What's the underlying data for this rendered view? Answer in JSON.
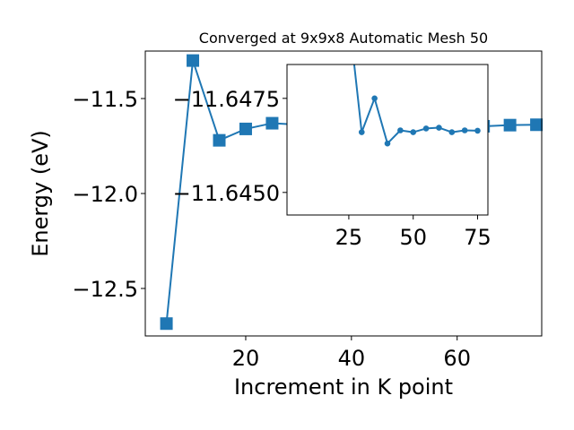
{
  "chart_data": [
    {
      "type": "line",
      "title": "Converged at 9x9x8 Automatic Mesh 50",
      "xlabel": "Increment in K point",
      "ylabel": "Energy (eV)",
      "xlim": [
        1,
        76
      ],
      "ylim": [
        -12.75,
        -11.25
      ],
      "xticks": [
        20,
        40,
        60
      ],
      "xtick_labels": [
        "20",
        "40",
        "60"
      ],
      "yticks": [
        -11.5,
        -12.0,
        -12.5
      ],
      "ytick_labels": [
        "−11.5",
        "−12.0",
        "−12.5"
      ],
      "marker": "square",
      "grid": false,
      "color": "#1f77b4",
      "series": [
        {
          "x": [
            5,
            10,
            15,
            20,
            25,
            30,
            35,
            40,
            45,
            50,
            55,
            60,
            65,
            70,
            75
          ],
          "values": [
            -12.685,
            -11.3,
            -11.72,
            -11.66,
            -11.63,
            -11.638,
            -11.645,
            -11.646,
            -11.646,
            -11.646,
            -11.646,
            -11.645,
            -11.646,
            -11.64,
            -11.638
          ]
        }
      ]
    },
    {
      "type": "line",
      "title": "",
      "xlabel": "",
      "ylabel": "",
      "xlim": [
        1,
        79
      ],
      "ylim": [
        -11.6444,
        -11.6484
      ],
      "xticks": [
        25,
        50,
        75
      ],
      "xtick_labels": [
        "25",
        "50",
        "75"
      ],
      "yticks": [
        -11.6475,
        -11.645
      ],
      "ytick_labels": [
        "−11.6475",
        "−11.6450"
      ],
      "marker": "circle",
      "grid": false,
      "color": "#1f77b4",
      "series": [
        {
          "x": [
            25,
            30,
            35,
            40,
            45,
            50,
            55,
            60,
            65,
            70,
            75
          ],
          "values": [
            -11.6497,
            -11.6466,
            -11.6475,
            -11.6463,
            -11.64665,
            -11.6466,
            -11.6467,
            -11.64672,
            -11.6466,
            -11.64665,
            -11.64664
          ]
        }
      ]
    }
  ]
}
